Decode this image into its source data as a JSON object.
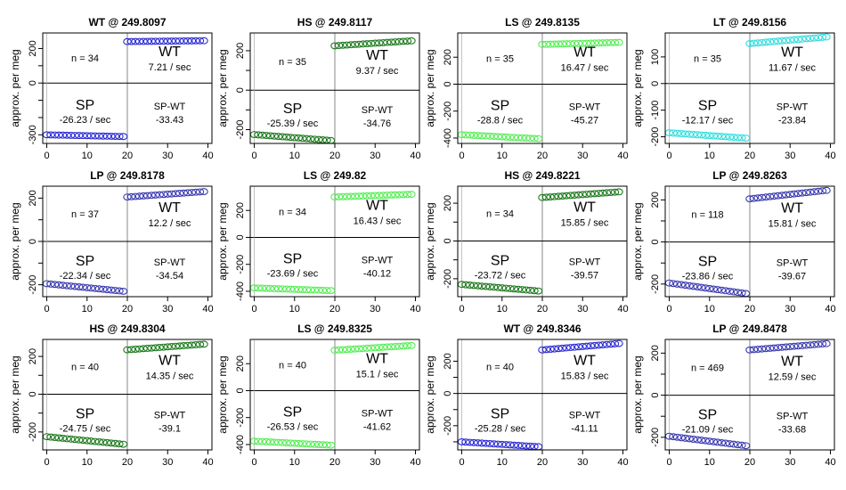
{
  "figure": {
    "ylabel": "approx. per meg"
  },
  "chart_data": [
    {
      "type": "scatter",
      "title": "WT @ 249.8097",
      "ylabel": "approx. per meg",
      "xlim": [
        -1,
        41
      ],
      "ylim": [
        -350,
        290
      ],
      "xticks": [
        0,
        10,
        20,
        30,
        40
      ],
      "yticks": [
        -300,
        -200,
        -100,
        0,
        100,
        200
      ],
      "ytick_labels": [
        "-300",
        "",
        "",
        "0",
        "",
        "200"
      ],
      "color": "#2b2bd4",
      "n_label": "n = 34",
      "wt_rate": "7.21 / sec",
      "sp_rate": "-26.23 / sec",
      "spwt": "-33.43",
      "sp_y": [
        -300,
        -310
      ],
      "wt_y": [
        240,
        245
      ]
    },
    {
      "type": "scatter",
      "title": "HS @ 249.8117",
      "ylabel": "approx. per meg",
      "xlim": [
        -1,
        41
      ],
      "ylim": [
        -270,
        290
      ],
      "xticks": [
        0,
        10,
        20,
        30,
        40
      ],
      "yticks": [
        -200,
        -100,
        0,
        100,
        200
      ],
      "ytick_labels": [
        "-200",
        "",
        "0",
        "",
        "200"
      ],
      "color": "#1e7a1e",
      "n_label": "n = 35",
      "wt_rate": "9.37 / sec",
      "sp_rate": "-25.39 / sec",
      "spwt": "-34.76",
      "sp_y": [
        -225,
        -255
      ],
      "wt_y": [
        225,
        250
      ]
    },
    {
      "type": "scatter",
      "title": "LS @ 249.8135",
      "ylabel": "approx. per meg",
      "xlim": [
        -1,
        41
      ],
      "ylim": [
        -440,
        380
      ],
      "xticks": [
        0,
        10,
        20,
        30,
        40
      ],
      "yticks": [
        -400,
        -200,
        0,
        200
      ],
      "ytick_labels": [
        "-400",
        "-200",
        "0",
        "200"
      ],
      "color": "#55ee55",
      "n_label": "n = 35",
      "wt_rate": "16.47 / sec",
      "sp_rate": "-28.8 / sec",
      "spwt": "-45.27",
      "sp_y": [
        -375,
        -405
      ],
      "wt_y": [
        295,
        310
      ]
    },
    {
      "type": "scatter",
      "title": "LT @ 249.8156",
      "ylabel": "approx. per meg",
      "xlim": [
        -1,
        41
      ],
      "ylim": [
        -225,
        190
      ],
      "xticks": [
        0,
        10,
        20,
        30,
        40
      ],
      "yticks": [
        -200,
        -100,
        0,
        100
      ],
      "ytick_labels": [
        "-200",
        "-100",
        "0",
        "100"
      ],
      "color": "#33dddd",
      "n_label": "n = 35",
      "wt_rate": "11.67 / sec",
      "sp_rate": "-12.17 / sec",
      "spwt": "-23.84",
      "sp_y": [
        -185,
        -205
      ],
      "wt_y": [
        150,
        175
      ]
    },
    {
      "type": "scatter",
      "title": "LP @ 249.8178",
      "ylabel": "approx. per meg",
      "xlim": [
        -1,
        41
      ],
      "ylim": [
        -255,
        255
      ],
      "xticks": [
        0,
        10,
        20,
        30,
        40
      ],
      "yticks": [
        -200,
        -100,
        0,
        100,
        200
      ],
      "ytick_labels": [
        "-200",
        "",
        "0",
        "",
        "200"
      ],
      "color": "#3b3bb0",
      "n_label": "n = 37",
      "wt_rate": "12.2 / sec",
      "sp_rate": "-22.34 / sec",
      "spwt": "-34.54",
      "sp_y": [
        -195,
        -230
      ],
      "wt_y": [
        205,
        230
      ]
    },
    {
      "type": "scatter",
      "title": "LS @ 249.82",
      "ylabel": "approx. per meg",
      "xlim": [
        -1,
        41
      ],
      "ylim": [
        -440,
        380
      ],
      "xticks": [
        0,
        10,
        20,
        30,
        40
      ],
      "yticks": [
        -400,
        -200,
        0,
        200
      ],
      "ytick_labels": [
        "-400",
        "-200",
        "0",
        "200"
      ],
      "color": "#55ee55",
      "n_label": "n = 34",
      "wt_rate": "16.43 / sec",
      "sp_rate": "-23.69 / sec",
      "spwt": "-40.12",
      "sp_y": [
        -375,
        -395
      ],
      "wt_y": [
        300,
        320
      ]
    },
    {
      "type": "scatter",
      "title": "HS @ 249.8221",
      "ylabel": "approx. per meg",
      "xlim": [
        -1,
        41
      ],
      "ylim": [
        -295,
        290
      ],
      "xticks": [
        0,
        10,
        20,
        30,
        40
      ],
      "yticks": [
        -200,
        -100,
        0,
        100,
        200
      ],
      "ytick_labels": [
        "-200",
        "",
        "0",
        "",
        "200"
      ],
      "color": "#1e7a1e",
      "n_label": "n = 34",
      "wt_rate": "15.85 / sec",
      "sp_rate": "-23.72 / sec",
      "spwt": "-39.57",
      "sp_y": [
        -230,
        -265
      ],
      "wt_y": [
        230,
        260
      ]
    },
    {
      "type": "scatter",
      "title": "LP @ 249.8263",
      "ylabel": "approx. per meg",
      "xlim": [
        -1,
        41
      ],
      "ylim": [
        -260,
        265
      ],
      "xticks": [
        0,
        10,
        20,
        30,
        40
      ],
      "yticks": [
        -200,
        -100,
        0,
        100,
        200
      ],
      "ytick_labels": [
        "-200",
        "",
        "0",
        "",
        "200"
      ],
      "color": "#3b3bb0",
      "n_label": "n = 118",
      "wt_rate": "15.81 / sec",
      "sp_rate": "-23.86 / sec",
      "spwt": "-39.67",
      "sp_y": [
        -195,
        -245
      ],
      "wt_y": [
        205,
        245
      ]
    },
    {
      "type": "scatter",
      "title": "HS @ 249.8304",
      "ylabel": "approx. per meg",
      "xlim": [
        -1,
        41
      ],
      "ylim": [
        -295,
        290
      ],
      "xticks": [
        0,
        10,
        20,
        30,
        40
      ],
      "yticks": [
        -200,
        -100,
        0,
        100,
        200
      ],
      "ytick_labels": [
        "-200",
        "",
        "0",
        "",
        "200"
      ],
      "color": "#1e7a1e",
      "n_label": "n = 40",
      "wt_rate": "14.35 / sec",
      "sp_rate": "-24.75 / sec",
      "spwt": "-39.1",
      "sp_y": [
        -225,
        -265
      ],
      "wt_y": [
        235,
        265
      ]
    },
    {
      "type": "scatter",
      "title": "LS @ 249.8325",
      "ylabel": "approx. per meg",
      "xlim": [
        -1,
        41
      ],
      "ylim": [
        -440,
        380
      ],
      "xticks": [
        0,
        10,
        20,
        30,
        40
      ],
      "yticks": [
        -400,
        -200,
        0,
        200
      ],
      "ytick_labels": [
        "-400",
        "-200",
        "0",
        "200"
      ],
      "color": "#55ee55",
      "n_label": "n = 40",
      "wt_rate": "15.1 / sec",
      "sp_rate": "-26.53 / sec",
      "spwt": "-41.62",
      "sp_y": [
        -375,
        -405
      ],
      "wt_y": [
        300,
        335
      ]
    },
    {
      "type": "scatter",
      "title": "WT @ 249.8346",
      "ylabel": "approx. per meg",
      "xlim": [
        -1,
        41
      ],
      "ylim": [
        -350,
        335
      ],
      "xticks": [
        0,
        10,
        20,
        30,
        40
      ],
      "yticks": [
        -300,
        -200,
        -100,
        0,
        100,
        200
      ],
      "ytick_labels": [
        "",
        "-200",
        "",
        "0",
        "",
        "200"
      ],
      "color": "#2b2bd4",
      "n_label": "n = 40",
      "wt_rate": "15.83 / sec",
      "sp_rate": "-25.28 / sec",
      "spwt": "-41.11",
      "sp_y": [
        -300,
        -330
      ],
      "wt_y": [
        270,
        310
      ]
    },
    {
      "type": "scatter",
      "title": "LP @ 249.8478",
      "ylabel": "approx. per meg",
      "xlim": [
        -1,
        41
      ],
      "ylim": [
        -260,
        265
      ],
      "xticks": [
        0,
        10,
        20,
        30,
        40
      ],
      "yticks": [
        -200,
        -100,
        0,
        100,
        200
      ],
      "ytick_labels": [
        "-200",
        "",
        "0",
        "",
        "200"
      ],
      "color": "#3b3bb0",
      "n_label": "n = 469",
      "wt_rate": "12.59 / sec",
      "sp_rate": "-21.09 / sec",
      "spwt": "-33.68",
      "sp_y": [
        -195,
        -240
      ],
      "wt_y": [
        215,
        245
      ]
    }
  ],
  "labels": {
    "wt": "WT",
    "sp": "SP",
    "spwt": "SP-WT"
  }
}
